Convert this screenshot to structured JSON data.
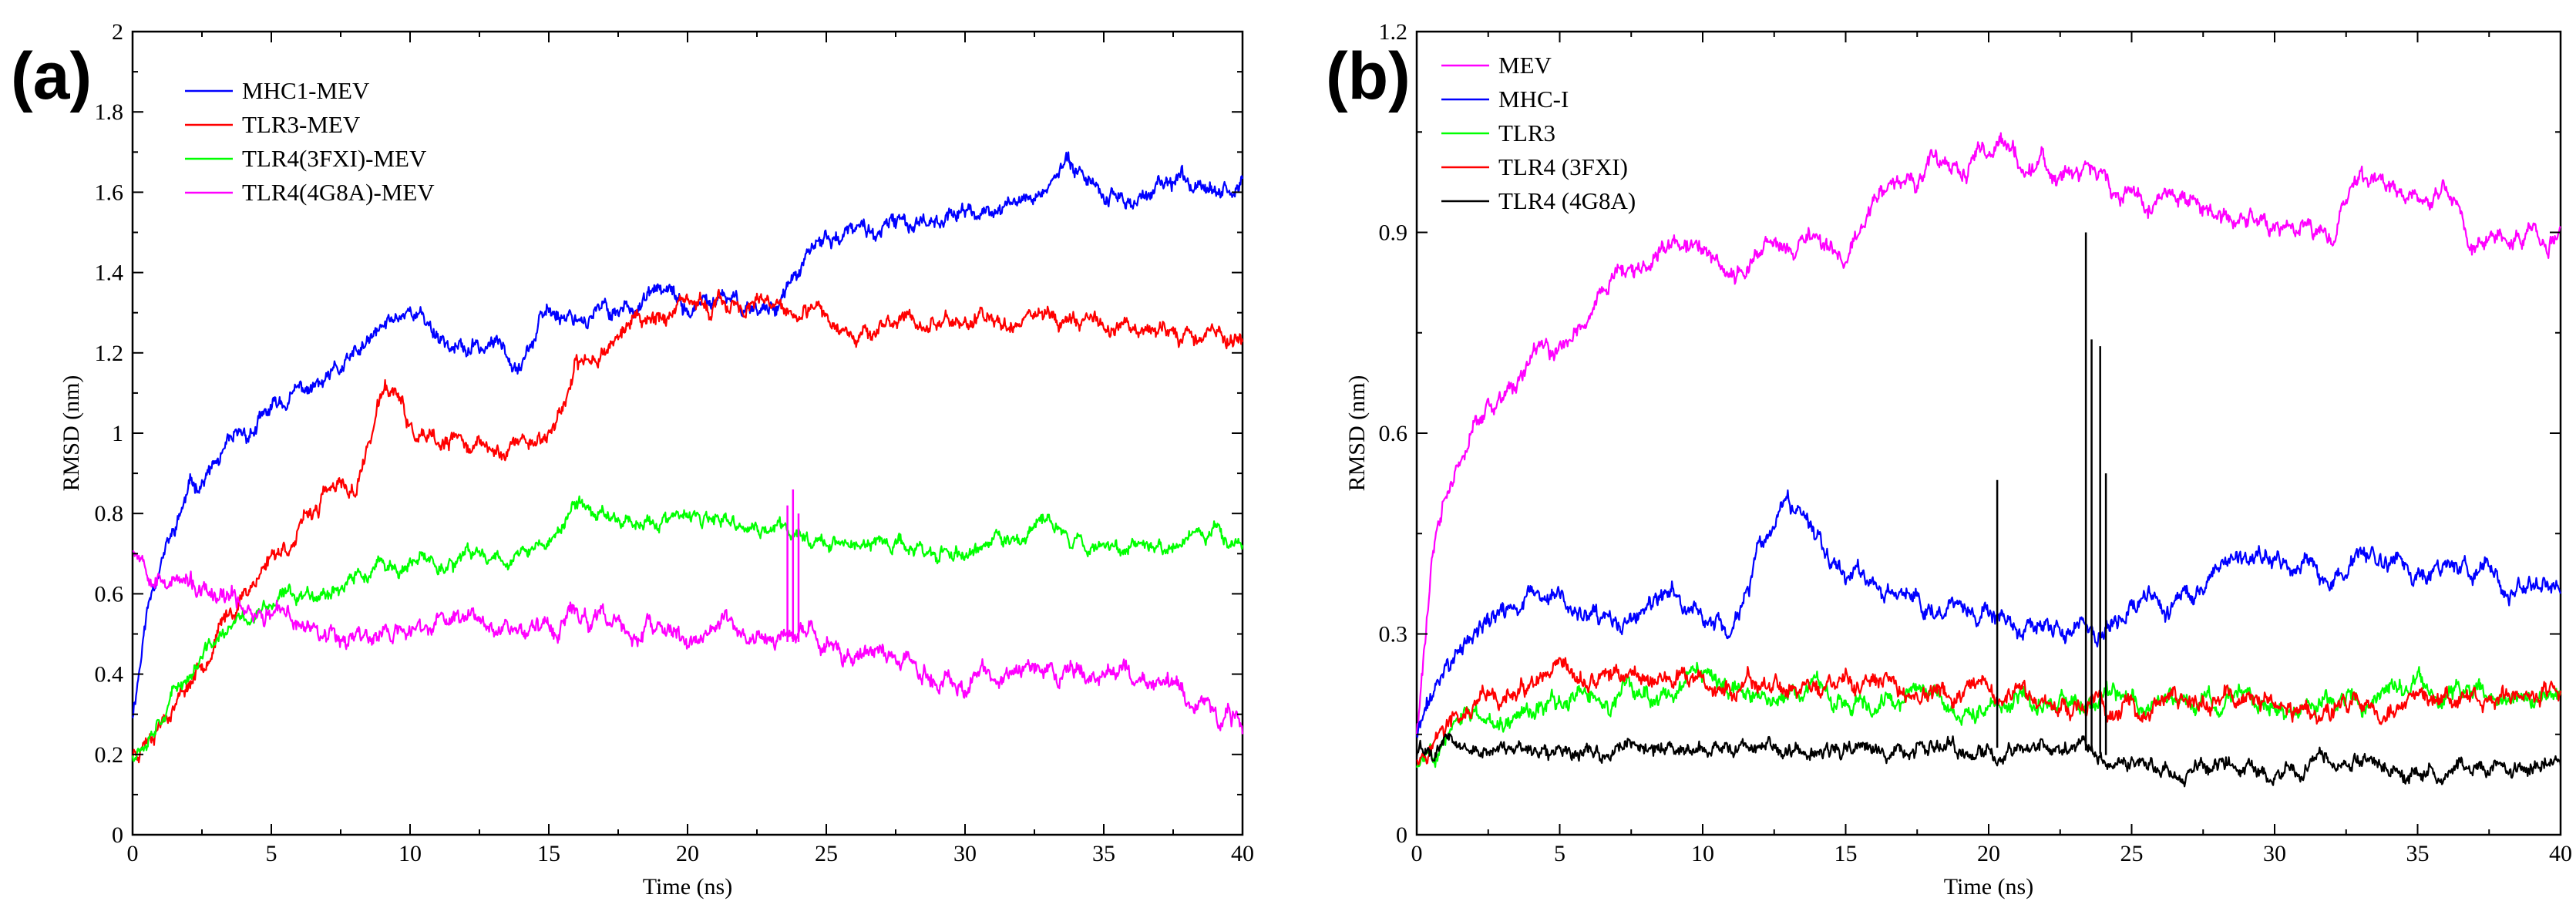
{
  "chart_data": [
    {
      "type": "line",
      "panel_label": "(a)",
      "xlabel": "Time (ns)",
      "ylabel": "RMSD (nm)",
      "xlim": [
        0,
        40
      ],
      "ylim": [
        0,
        2
      ],
      "xticks": [
        0,
        5,
        10,
        15,
        20,
        25,
        30,
        35,
        40
      ],
      "xtick_labels": [
        "0",
        "5",
        "10",
        "15",
        "20",
        "25",
        "30",
        "35",
        "40"
      ],
      "yticks": [
        0,
        0.2,
        0.4,
        0.6,
        0.8,
        1,
        1.2,
        1.4,
        1.6,
        1.8,
        2
      ],
      "ytick_labels": [
        "0",
        "0.2",
        "0.4",
        "0.6",
        "0.8",
        "1",
        "1.2",
        "1.4",
        "1.6",
        "1.8",
        "2"
      ],
      "legend_position": "top-left",
      "series": [
        {
          "name": "MHC1-MEV",
          "color": "#0000ff",
          "noise": 0.018,
          "seed": 11,
          "x": [
            0,
            0.5,
            1,
            1.5,
            2,
            3,
            4,
            5,
            6,
            7,
            8,
            9,
            10,
            11,
            12,
            13,
            14,
            15,
            16,
            17,
            18,
            19,
            20,
            21,
            22,
            23,
            24,
            25,
            26,
            27,
            28,
            29,
            30,
            31,
            32,
            33,
            34,
            35,
            36,
            37,
            38,
            39,
            40
          ],
          "y": [
            0.3,
            0.55,
            0.7,
            0.75,
            0.85,
            0.92,
            0.98,
            1.05,
            1.1,
            1.12,
            1.18,
            1.25,
            1.32,
            1.25,
            1.2,
            1.22,
            1.2,
            1.3,
            1.3,
            1.3,
            1.32,
            1.35,
            1.3,
            1.32,
            1.32,
            1.32,
            1.4,
            1.48,
            1.5,
            1.5,
            1.52,
            1.55,
            1.55,
            1.55,
            1.58,
            1.62,
            1.68,
            1.6,
            1.58,
            1.6,
            1.62,
            1.65,
            1.62
          ],
          "spikes": []
        },
        {
          "name": "TLR3-MEV",
          "color": "#ff0000",
          "noise": 0.018,
          "seed": 23,
          "x": [
            0,
            1,
            2,
            3,
            4,
            5,
            6,
            7,
            8,
            9,
            9.5,
            10,
            11,
            12,
            13,
            14,
            15,
            16,
            17,
            18,
            19,
            20,
            21,
            22,
            23,
            24,
            25,
            26,
            27,
            28,
            29,
            30,
            31,
            32,
            33,
            34,
            35,
            36,
            37,
            38,
            39,
            40
          ],
          "y": [
            0.2,
            0.3,
            0.38,
            0.5,
            0.6,
            0.7,
            0.75,
            0.85,
            0.85,
            1.1,
            1.1,
            1.0,
            0.95,
            0.98,
            0.95,
            0.98,
            1.0,
            1.15,
            1.22,
            1.28,
            1.3,
            1.3,
            1.32,
            1.32,
            1.3,
            1.28,
            1.28,
            1.27,
            1.26,
            1.28,
            1.28,
            1.28,
            1.28,
            1.3,
            1.3,
            1.28,
            1.28,
            1.27,
            1.27,
            1.25,
            1.25,
            1.24
          ],
          "spikes": []
        },
        {
          "name": "TLR4(3FXI)-MEV",
          "color": "#00ff00",
          "noise": 0.016,
          "seed": 37,
          "x": [
            0,
            1,
            2,
            3,
            4,
            5,
            6,
            7,
            8,
            9,
            10,
            11,
            12,
            13,
            14,
            15,
            16,
            17,
            18,
            19,
            20,
            21,
            22,
            23,
            24,
            25,
            26,
            27,
            28,
            29,
            30,
            31,
            32,
            33,
            34,
            35,
            36,
            37,
            38,
            39,
            40
          ],
          "y": [
            0.2,
            0.32,
            0.4,
            0.48,
            0.53,
            0.57,
            0.6,
            0.62,
            0.64,
            0.66,
            0.66,
            0.68,
            0.68,
            0.7,
            0.7,
            0.72,
            0.82,
            0.8,
            0.79,
            0.78,
            0.78,
            0.77,
            0.76,
            0.76,
            0.75,
            0.74,
            0.72,
            0.72,
            0.72,
            0.7,
            0.7,
            0.72,
            0.74,
            0.78,
            0.74,
            0.72,
            0.74,
            0.72,
            0.74,
            0.74,
            0.74
          ],
          "spikes": []
        },
        {
          "name": "TLR4(4G8A)-MEV",
          "color": "#ff00ff",
          "noise": 0.02,
          "seed": 53,
          "x": [
            0,
            1,
            2,
            3,
            4,
            5,
            6,
            7,
            8,
            9,
            10,
            11,
            12,
            13,
            14,
            15,
            16,
            17,
            18,
            19,
            20,
            21,
            22,
            23,
            24,
            25,
            26,
            27,
            28,
            29,
            30,
            31,
            32,
            33,
            34,
            35,
            36,
            37,
            38,
            39,
            40
          ],
          "y": [
            0.72,
            0.66,
            0.62,
            0.57,
            0.57,
            0.55,
            0.52,
            0.52,
            0.5,
            0.5,
            0.5,
            0.52,
            0.55,
            0.55,
            0.52,
            0.52,
            0.55,
            0.52,
            0.5,
            0.5,
            0.48,
            0.52,
            0.5,
            0.48,
            0.48,
            0.48,
            0.45,
            0.45,
            0.42,
            0.4,
            0.38,
            0.4,
            0.38,
            0.42,
            0.4,
            0.42,
            0.4,
            0.38,
            0.35,
            0.3,
            0.26
          ],
          "spikes": [
            [
              23.6,
              0.82
            ],
            [
              23.8,
              0.86
            ],
            [
              24.0,
              0.8
            ]
          ]
        }
      ]
    },
    {
      "type": "line",
      "panel_label": "(b)",
      "xlabel": "Time (ns)",
      "ylabel": "RMSD (nm)",
      "xlim": [
        0,
        40
      ],
      "ylim": [
        0,
        1.2
      ],
      "xticks": [
        0,
        5,
        10,
        15,
        20,
        25,
        30,
        35,
        40
      ],
      "xtick_labels": [
        "0",
        "5",
        "10",
        "15",
        "20",
        "25",
        "30",
        "35",
        "40"
      ],
      "yticks": [
        0,
        0.3,
        0.6,
        0.9,
        1.2
      ],
      "ytick_labels": [
        "0",
        "0.3",
        "0.6",
        "0.9",
        "1.2"
      ],
      "legend_position": "top-left",
      "series": [
        {
          "name": "MEV",
          "color": "#ff00ff",
          "noise": 0.012,
          "seed": 61,
          "x": [
            0,
            0.5,
            1,
            2,
            3,
            4,
            5,
            6,
            7,
            8,
            9,
            10,
            11,
            12,
            13,
            14,
            15,
            16,
            17,
            18,
            19,
            20,
            21,
            22,
            23,
            24,
            25,
            26,
            27,
            28,
            29,
            30,
            31,
            32,
            33,
            34,
            35,
            36,
            37,
            38,
            39,
            40
          ],
          "y": [
            0.15,
            0.4,
            0.5,
            0.6,
            0.65,
            0.7,
            0.72,
            0.78,
            0.85,
            0.85,
            0.88,
            0.88,
            0.82,
            0.88,
            0.88,
            0.9,
            0.85,
            0.95,
            0.98,
            1.0,
            0.98,
            1.03,
            1.02,
            1.0,
            0.98,
            0.98,
            0.97,
            0.95,
            0.94,
            0.93,
            0.92,
            0.9,
            0.9,
            0.9,
            0.98,
            0.95,
            0.95,
            0.96,
            0.88,
            0.9,
            0.88,
            0.9
          ],
          "spikes": []
        },
        {
          "name": "MHC-I",
          "color": "#0000ff",
          "noise": 0.012,
          "seed": 71,
          "x": [
            0,
            1,
            2,
            3,
            4,
            5,
            6,
            7,
            8,
            9,
            10,
            11,
            12,
            13,
            14,
            15,
            16,
            17,
            18,
            19,
            20,
            21,
            22,
            23,
            24,
            25,
            26,
            27,
            28,
            29,
            30,
            31,
            32,
            33,
            34,
            35,
            36,
            37,
            38,
            39,
            40
          ],
          "y": [
            0.15,
            0.25,
            0.3,
            0.33,
            0.35,
            0.35,
            0.32,
            0.3,
            0.33,
            0.35,
            0.33,
            0.3,
            0.42,
            0.48,
            0.45,
            0.4,
            0.38,
            0.35,
            0.35,
            0.35,
            0.32,
            0.3,
            0.3,
            0.3,
            0.3,
            0.35,
            0.35,
            0.35,
            0.38,
            0.42,
            0.4,
            0.4,
            0.38,
            0.42,
            0.4,
            0.4,
            0.4,
            0.4,
            0.38,
            0.38,
            0.36
          ],
          "spikes": []
        },
        {
          "name": "TLR3",
          "color": "#00ff00",
          "noise": 0.012,
          "seed": 83,
          "x": [
            0,
            1,
            2,
            3,
            4,
            5,
            6,
            7,
            8,
            9,
            10,
            11,
            12,
            13,
            14,
            15,
            16,
            17,
            18,
            19,
            20,
            21,
            22,
            23,
            24,
            25,
            26,
            27,
            28,
            29,
            30,
            31,
            32,
            33,
            34,
            35,
            36,
            37,
            38,
            39,
            40
          ],
          "y": [
            0.1,
            0.15,
            0.17,
            0.18,
            0.19,
            0.2,
            0.2,
            0.2,
            0.21,
            0.22,
            0.22,
            0.21,
            0.21,
            0.21,
            0.21,
            0.21,
            0.21,
            0.21,
            0.21,
            0.2,
            0.2,
            0.2,
            0.2,
            0.2,
            0.2,
            0.2,
            0.2,
            0.2,
            0.2,
            0.2,
            0.2,
            0.2,
            0.2,
            0.21,
            0.21,
            0.21,
            0.21,
            0.21,
            0.21,
            0.21,
            0.21
          ],
          "spikes": []
        },
        {
          "name": "TLR4 (3FXI)",
          "color": "#ff0000",
          "noise": 0.012,
          "seed": 97,
          "x": [
            0,
            1,
            2,
            3,
            4,
            5,
            6,
            7,
            8,
            9,
            10,
            11,
            12,
            13,
            14,
            15,
            16,
            17,
            18,
            19,
            20,
            21,
            22,
            23,
            24,
            25,
            26,
            27,
            28,
            29,
            30,
            31,
            32,
            33,
            34,
            35,
            36,
            37,
            38,
            39,
            40
          ],
          "y": [
            0.12,
            0.16,
            0.18,
            0.2,
            0.21,
            0.22,
            0.22,
            0.24,
            0.24,
            0.23,
            0.22,
            0.21,
            0.22,
            0.22,
            0.22,
            0.22,
            0.22,
            0.21,
            0.21,
            0.2,
            0.2,
            0.2,
            0.2,
            0.2,
            0.19,
            0.19,
            0.19,
            0.2,
            0.2,
            0.2,
            0.19,
            0.19,
            0.19,
            0.2,
            0.19,
            0.19,
            0.19,
            0.2,
            0.2,
            0.21,
            0.21
          ],
          "spikes": []
        },
        {
          "name": "TLR4 (4G8A)",
          "color": "#000000",
          "noise": 0.01,
          "seed": 101,
          "x": [
            0,
            1,
            2,
            3,
            4,
            5,
            6,
            7,
            8,
            9,
            10,
            11,
            12,
            13,
            14,
            15,
            16,
            17,
            18,
            19,
            20,
            21,
            22,
            23,
            24,
            25,
            26,
            27,
            28,
            29,
            30,
            31,
            32,
            33,
            34,
            35,
            36,
            37,
            38,
            39,
            40
          ],
          "y": [
            0.12,
            0.14,
            0.13,
            0.13,
            0.13,
            0.13,
            0.13,
            0.13,
            0.13,
            0.13,
            0.13,
            0.13,
            0.13,
            0.13,
            0.13,
            0.13,
            0.13,
            0.13,
            0.13,
            0.13,
            0.13,
            0.13,
            0.13,
            0.13,
            0.12,
            0.11,
            0.1,
            0.1,
            0.1,
            0.11,
            0.1,
            0.1,
            0.1,
            0.11,
            0.1,
            0.1,
            0.1,
            0.11,
            0.1,
            0.1,
            0.1
          ],
          "spikes": [
            [
              20.3,
              0.53
            ],
            [
              23.4,
              0.9
            ],
            [
              23.6,
              0.74
            ],
            [
              23.9,
              0.73
            ],
            [
              24.1,
              0.54
            ]
          ]
        }
      ]
    }
  ]
}
